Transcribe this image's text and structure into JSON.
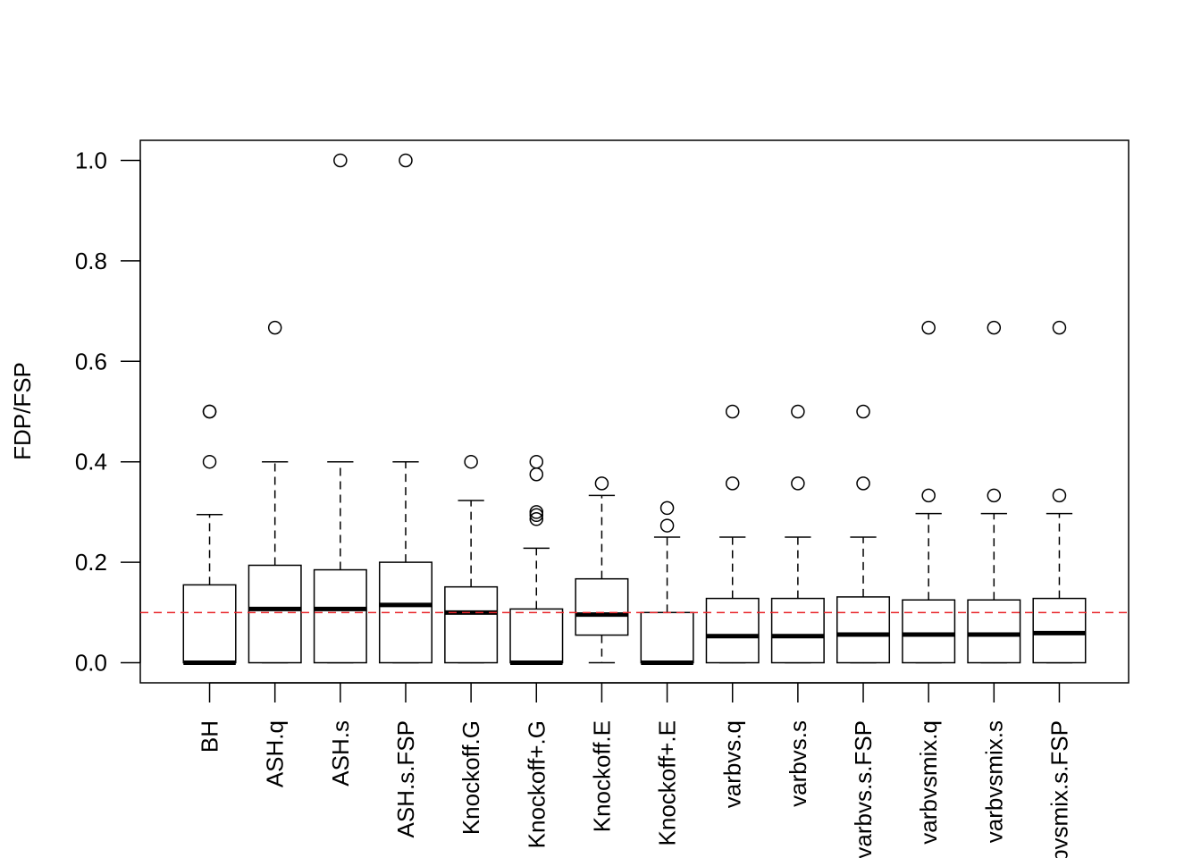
{
  "chart_data": {
    "type": "boxplot",
    "title": "",
    "xlabel": "",
    "ylabel": "FDP/FSP",
    "ylim": [
      0,
      1
    ],
    "yticks": [
      "0.0",
      "0.2",
      "0.4",
      "0.6",
      "0.8",
      "1.0"
    ],
    "reference_line": {
      "y": 0.1,
      "color": "#e8262b",
      "style": "dashed"
    },
    "categories": [
      "BH",
      "ASH.q",
      "ASH.s",
      "ASH.s.FSP",
      "Knockoff.G",
      "Knockoff+.G",
      "Knockoff.E",
      "Knockoff+.E",
      "varbvs.q",
      "varbvs.s",
      "varbvs.s.FSP",
      "varbvsmix.q",
      "varbvsmix.s",
      "varbvsmix.s.FSP"
    ],
    "boxes": [
      {
        "min": 0,
        "q1": 0,
        "median": 0,
        "q3": 0.155,
        "max": 0.295,
        "outliers": [
          0.5,
          0.5,
          0.4
        ]
      },
      {
        "min": 0,
        "q1": 0,
        "median": 0.107,
        "q3": 0.194,
        "max": 0.4,
        "outliers": [
          0.667
        ]
      },
      {
        "min": 0,
        "q1": 0,
        "median": 0.107,
        "q3": 0.185,
        "max": 0.4,
        "outliers": [
          1.0
        ]
      },
      {
        "min": 0,
        "q1": 0,
        "median": 0.115,
        "q3": 0.2,
        "max": 0.4,
        "outliers": [
          1.0
        ]
      },
      {
        "min": 0,
        "q1": 0,
        "median": 0.1,
        "q3": 0.151,
        "max": 0.323,
        "outliers": [
          0.4
        ]
      },
      {
        "min": 0,
        "q1": 0,
        "median": 0,
        "q3": 0.107,
        "max": 0.228,
        "outliers": [
          0.4,
          0.375,
          0.3,
          0.294,
          0.286
        ]
      },
      {
        "min": 0,
        "q1": 0.055,
        "median": 0.096,
        "q3": 0.167,
        "max": 0.333,
        "outliers": [
          0.357
        ]
      },
      {
        "min": 0,
        "q1": 0,
        "median": 0,
        "q3": 0.1,
        "max": 0.25,
        "outliers": [
          0.308,
          0.273
        ]
      },
      {
        "min": 0,
        "q1": 0,
        "median": 0.053,
        "q3": 0.128,
        "max": 0.25,
        "outliers": [
          0.5,
          0.357
        ]
      },
      {
        "min": 0,
        "q1": 0,
        "median": 0.053,
        "q3": 0.128,
        "max": 0.25,
        "outliers": [
          0.5,
          0.357
        ]
      },
      {
        "min": 0,
        "q1": 0,
        "median": 0.056,
        "q3": 0.131,
        "max": 0.25,
        "outliers": [
          0.5,
          0.357
        ]
      },
      {
        "min": 0,
        "q1": 0,
        "median": 0.056,
        "q3": 0.125,
        "max": 0.297,
        "outliers": [
          0.667,
          0.333
        ]
      },
      {
        "min": 0,
        "q1": 0,
        "median": 0.056,
        "q3": 0.125,
        "max": 0.297,
        "outliers": [
          0.667,
          0.333
        ]
      },
      {
        "min": 0,
        "q1": 0,
        "median": 0.059,
        "q3": 0.128,
        "max": 0.297,
        "outliers": [
          0.667,
          0.333
        ]
      }
    ],
    "grid": false,
    "legend": "none"
  }
}
